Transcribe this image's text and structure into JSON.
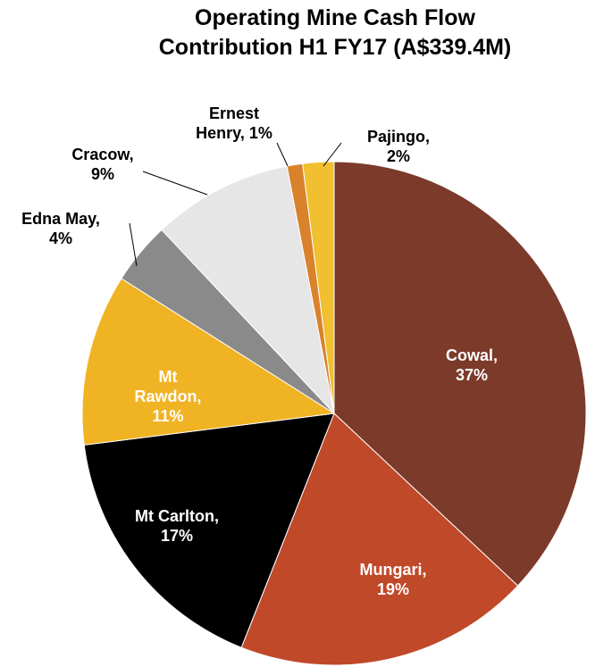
{
  "chart_data": {
    "type": "pie",
    "title": "Operating Mine Cash Flow Contribution H1 FY17 (A$339.4M)",
    "values": [
      37,
      19,
      17,
      11,
      4,
      9,
      1,
      2
    ],
    "data_labels": [
      [
        "Cowal,",
        "37%"
      ],
      [
        "Mungari,",
        "19%"
      ],
      [
        "Mt Carlton,",
        "17%"
      ],
      [
        "Mt",
        "Rawdon,",
        "11%"
      ],
      [
        "Edna May,",
        "4%"
      ],
      [
        "Cracow,",
        "9%"
      ],
      [
        "Ernest",
        "Henry, 1%"
      ],
      [
        "Pajingo,",
        "2%"
      ]
    ],
    "colors": [
      "#7b3a2a",
      "#c0492a",
      "#000000",
      "#f0b323",
      "#8a8a8a",
      "#e6e6e6",
      "#d9822b",
      "#f0c030"
    ]
  }
}
